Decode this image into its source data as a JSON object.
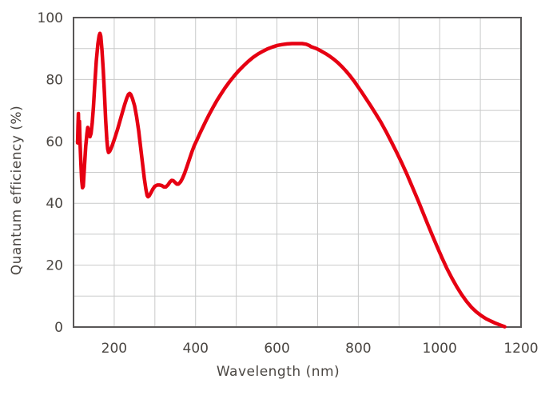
{
  "chart_data": {
    "type": "line",
    "title": "",
    "xlabel": "Wavelength (nm)",
    "ylabel": "Quantum efficiency (%)",
    "xlim": [
      100,
      1200
    ],
    "ylim": [
      0,
      100
    ],
    "x_ticks": [
      200,
      400,
      600,
      800,
      1000,
      1200
    ],
    "y_ticks": [
      0,
      20,
      40,
      60,
      80,
      100
    ],
    "x_grid_step": 100,
    "y_grid_step": 10,
    "grid": true,
    "legend_position": "none",
    "colors": {
      "line": "#e60012",
      "grid": "#c9caca",
      "frame": "#595757",
      "text": "#4a4642",
      "background": "#ffffff"
    },
    "series": [
      {
        "name": "Quantum efficiency",
        "points": [
          [
            110,
            59.5
          ],
          [
            111,
            65
          ],
          [
            112,
            69
          ],
          [
            113,
            62
          ],
          [
            114.5,
            66.5
          ],
          [
            116,
            60
          ],
          [
            118,
            53
          ],
          [
            120,
            47.5
          ],
          [
            122,
            45
          ],
          [
            124,
            45.5
          ],
          [
            127,
            52
          ],
          [
            130,
            58.5
          ],
          [
            133,
            62.5
          ],
          [
            135,
            64.5
          ],
          [
            138,
            63
          ],
          [
            140.5,
            61.5
          ],
          [
            143,
            62.5
          ],
          [
            146,
            66
          ],
          [
            149,
            71
          ],
          [
            152,
            78
          ],
          [
            156,
            86
          ],
          [
            160,
            91.5
          ],
          [
            163,
            94.2
          ],
          [
            165,
            94.9
          ],
          [
            167,
            94
          ],
          [
            170,
            89.5
          ],
          [
            173,
            83
          ],
          [
            176,
            75.5
          ],
          [
            179,
            67
          ],
          [
            182,
            60.5
          ],
          [
            184,
            57.5
          ],
          [
            186,
            56.4
          ],
          [
            189,
            56.8
          ],
          [
            192,
            57.6
          ],
          [
            196,
            59
          ],
          [
            202,
            61.3
          ],
          [
            208,
            63.8
          ],
          [
            214,
            66.5
          ],
          [
            220,
            69.3
          ],
          [
            226,
            72
          ],
          [
            231,
            74
          ],
          [
            235,
            75.2
          ],
          [
            238,
            75.5
          ],
          [
            241,
            75.1
          ],
          [
            245,
            73.8
          ],
          [
            250,
            71.5
          ],
          [
            255,
            68
          ],
          [
            260,
            63.5
          ],
          [
            265,
            58
          ],
          [
            270,
            52.5
          ],
          [
            274,
            48
          ],
          [
            278,
            44.5
          ],
          [
            281,
            42.5
          ],
          [
            283,
            42.1
          ],
          [
            286,
            42.4
          ],
          [
            290,
            43.3
          ],
          [
            295,
            44.6
          ],
          [
            300,
            45.5
          ],
          [
            306,
            45.9
          ],
          [
            312,
            45.9
          ],
          [
            317,
            45.7
          ],
          [
            322,
            45.3
          ],
          [
            327,
            45.3
          ],
          [
            332,
            45.9
          ],
          [
            337,
            46.9
          ],
          [
            341,
            47.4
          ],
          [
            345,
            47.3
          ],
          [
            350,
            46.7
          ],
          [
            354,
            46.2
          ],
          [
            358,
            46.2
          ],
          [
            363,
            46.9
          ],
          [
            368,
            48.1
          ],
          [
            373,
            49.7
          ],
          [
            379,
            51.9
          ],
          [
            385,
            54.3
          ],
          [
            391,
            56.6
          ],
          [
            397,
            58.7
          ],
          [
            403,
            60.4
          ],
          [
            410,
            62.4
          ],
          [
            418,
            64.6
          ],
          [
            426,
            66.8
          ],
          [
            434,
            68.8
          ],
          [
            443,
            71
          ],
          [
            452,
            73.1
          ],
          [
            462,
            75.2
          ],
          [
            472,
            77.2
          ],
          [
            483,
            79.2
          ],
          [
            494,
            81
          ],
          [
            505,
            82.7
          ],
          [
            517,
            84.3
          ],
          [
            529,
            85.8
          ],
          [
            541,
            87.1
          ],
          [
            553,
            88.2
          ],
          [
            565,
            89.1
          ],
          [
            577,
            89.9
          ],
          [
            589,
            90.5
          ],
          [
            601,
            91
          ],
          [
            613,
            91.3
          ],
          [
            625,
            91.5
          ],
          [
            637,
            91.6
          ],
          [
            650,
            91.6
          ],
          [
            662,
            91.6
          ],
          [
            672,
            91.4
          ],
          [
            679,
            91
          ],
          [
            684,
            90.6
          ],
          [
            690,
            90.3
          ],
          [
            695,
            90.1
          ],
          [
            700,
            89.8
          ],
          [
            707,
            89.3
          ],
          [
            715,
            88.7
          ],
          [
            723,
            88.1
          ],
          [
            731,
            87.4
          ],
          [
            740,
            86.5
          ],
          [
            750,
            85.4
          ],
          [
            760,
            84.1
          ],
          [
            770,
            82.7
          ],
          [
            780,
            81.1
          ],
          [
            790,
            79.4
          ],
          [
            800,
            77.5
          ],
          [
            808,
            76
          ],
          [
            818,
            74
          ],
          [
            830,
            71.6
          ],
          [
            842,
            69.1
          ],
          [
            855,
            66.3
          ],
          [
            868,
            63.2
          ],
          [
            881,
            59.9
          ],
          [
            894,
            56.5
          ],
          [
            907,
            53
          ],
          [
            920,
            49.2
          ],
          [
            933,
            45.2
          ],
          [
            946,
            41.2
          ],
          [
            958,
            37.3
          ],
          [
            970,
            33.4
          ],
          [
            982,
            29.6
          ],
          [
            994,
            25.9
          ],
          [
            1006,
            22.3
          ],
          [
            1018,
            18.9
          ],
          [
            1030,
            15.8
          ],
          [
            1042,
            13
          ],
          [
            1054,
            10.5
          ],
          [
            1066,
            8.3
          ],
          [
            1078,
            6.4
          ],
          [
            1090,
            4.9
          ],
          [
            1102,
            3.7
          ],
          [
            1114,
            2.7
          ],
          [
            1126,
            1.9
          ],
          [
            1138,
            1.2
          ],
          [
            1150,
            0.6
          ],
          [
            1160,
            0.1
          ]
        ]
      }
    ]
  }
}
